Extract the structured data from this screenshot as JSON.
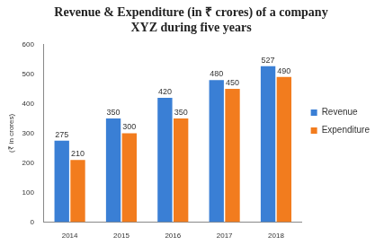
{
  "chart_data": {
    "type": "bar",
    "title": [
      "Revenue & Expenditure (in ₹ crores) of a company",
      "XYZ during five years"
    ],
    "y_label": "(₹ in crores)",
    "categories": [
      "2014",
      "2015",
      "2016",
      "2017",
      "2018"
    ],
    "series": [
      {
        "name": "Revenue",
        "color": "#3a7fd5",
        "values": [
          275,
          350,
          420,
          480,
          527
        ]
      },
      {
        "name": "Expenditure",
        "color": "#f27c1e",
        "values": [
          210,
          300,
          350,
          450,
          490
        ]
      }
    ],
    "ylim": [
      0,
      600
    ],
    "yticks": [
      0,
      100,
      200,
      300,
      400,
      500,
      600
    ],
    "grid": false,
    "legend": "right",
    "data_labels": true
  }
}
